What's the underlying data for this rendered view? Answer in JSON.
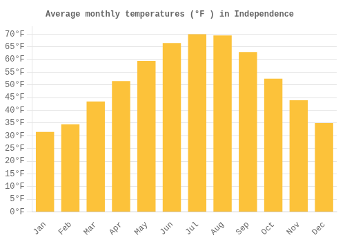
{
  "chart_data": {
    "type": "bar",
    "title": "Average monthly temperatures (°F ) in Independence",
    "categories": [
      "Jan",
      "Feb",
      "Mar",
      "Apr",
      "May",
      "Jun",
      "Jul",
      "Aug",
      "Sep",
      "Oct",
      "Nov",
      "Dec"
    ],
    "values": [
      31.5,
      34.5,
      43.5,
      51.5,
      59.5,
      66.5,
      70.0,
      69.5,
      63.0,
      52.5,
      44.0,
      35.0
    ],
    "color": "#FCC23A",
    "ylim": [
      0,
      73
    ],
    "yticks": [
      {
        "value": 0,
        "label": "0°F"
      },
      {
        "value": 5,
        "label": "5°F"
      },
      {
        "value": 10,
        "label": "10°F"
      },
      {
        "value": 15,
        "label": "15°F"
      },
      {
        "value": 20,
        "label": "20°F"
      },
      {
        "value": 25,
        "label": "25°F"
      },
      {
        "value": 30,
        "label": "30°F"
      },
      {
        "value": 35,
        "label": "35°F"
      },
      {
        "value": 40,
        "label": "40°F"
      },
      {
        "value": 45,
        "label": "45°F"
      },
      {
        "value": 50,
        "label": "50°F"
      },
      {
        "value": 55,
        "label": "55°F"
      },
      {
        "value": 60,
        "label": "60°F"
      },
      {
        "value": 65,
        "label": "65°F"
      },
      {
        "value": 70,
        "label": "70°F"
      }
    ],
    "grid": true
  }
}
